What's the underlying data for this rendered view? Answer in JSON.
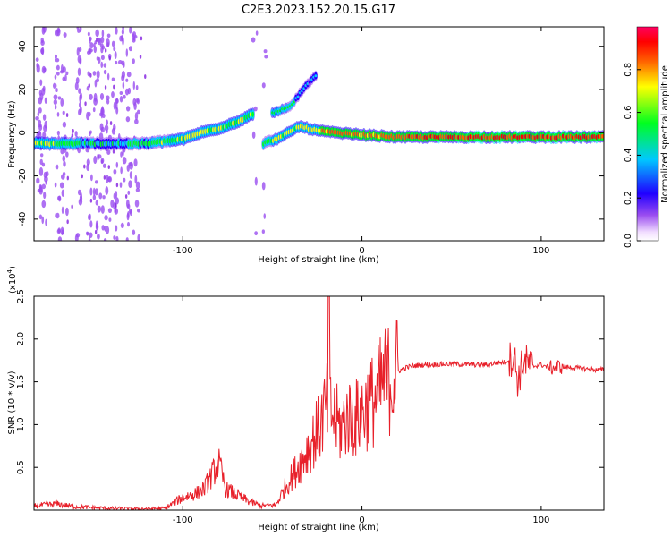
{
  "title": "C2E3.2023.152.20.15.G17",
  "chart_data": [
    {
      "type": "heatmap",
      "xlabel": "Height of straight line (km)",
      "ylabel": "Frequency (Hz)",
      "xlim": [
        -183,
        135
      ],
      "ylim": [
        -50,
        49
      ],
      "x_ticks": [
        -100,
        0,
        100
      ],
      "x_tick_labels": [
        "-100",
        "0",
        "100"
      ],
      "y_ticks": [
        -40,
        -20,
        0,
        20,
        40
      ],
      "y_tick_labels": [
        "-40",
        "-20",
        "0",
        "20",
        "40"
      ],
      "colorbar": {
        "label": "Normalized spectral amplitude",
        "range": [
          0,
          1
        ],
        "ticks": [
          0.0,
          0.2,
          0.4,
          0.6,
          0.8
        ],
        "tick_labels": [
          "0.0",
          "0.2",
          "0.4",
          "0.6",
          "0.8"
        ],
        "colors": [
          "#f4e4ff",
          "#9a4df0",
          "#2000ff",
          "#00d0ff",
          "#00ff20",
          "#ffff00",
          "#ff6000",
          "#ff0000",
          "#ff0060"
        ]
      },
      "main_track": [
        {
          "x": -183,
          "freq": -5,
          "amp": 0.6
        },
        {
          "x": -160,
          "freq": -5,
          "amp": 0.45
        },
        {
          "x": -140,
          "freq": -5,
          "amp": 0.35
        },
        {
          "x": -120,
          "freq": -5,
          "amp": 0.45
        },
        {
          "x": -100,
          "freq": -3,
          "amp": 0.55
        },
        {
          "x": -90,
          "freq": 0,
          "amp": 0.6
        },
        {
          "x": -80,
          "freq": 2,
          "amp": 0.55
        },
        {
          "x": -70,
          "freq": 5,
          "amp": 0.55
        },
        {
          "x": -60,
          "freq": 9,
          "amp": 0.55
        }
      ],
      "secondary_track": [
        {
          "x": -55,
          "freq": -5,
          "amp": 0.45
        },
        {
          "x": -45,
          "freq": -2,
          "amp": 0.55
        },
        {
          "x": -35,
          "freq": 3,
          "amp": 0.6
        },
        {
          "x": -25,
          "freq": 1,
          "amp": 0.7
        },
        {
          "x": -15,
          "freq": 0,
          "amp": 0.8
        },
        {
          "x": 0,
          "freq": -1,
          "amp": 0.75
        },
        {
          "x": 20,
          "freq": -2,
          "amp": 0.8
        },
        {
          "x": 60,
          "freq": -2,
          "amp": 0.85
        },
        {
          "x": 100,
          "freq": -2,
          "amp": 0.85
        },
        {
          "x": 135,
          "freq": -2,
          "amp": 0.85
        }
      ],
      "branch_track": [
        {
          "x": -50,
          "freq": 9,
          "amp": 0.55
        },
        {
          "x": -40,
          "freq": 12,
          "amp": 0.45
        },
        {
          "x": -33,
          "freq": 20,
          "amp": 0.3
        },
        {
          "x": -25,
          "freq": 27,
          "amp": 0.2
        }
      ]
    },
    {
      "type": "line",
      "xlabel": "Height of straight line (km)",
      "ylabel": "SNR (10 * v/v)",
      "y_scale_label": "(x10",
      "y_scale_exponent": "4",
      "y_scale_suffix": ")",
      "xlim": [
        -183,
        135
      ],
      "ylim": [
        0,
        25000
      ],
      "x_ticks": [
        -100,
        0,
        100
      ],
      "x_tick_labels": [
        "-100",
        "0",
        "100"
      ],
      "y_ticks": [
        5000,
        10000,
        15000,
        20000,
        25000
      ],
      "y_tick_labels": [
        "0.5",
        "1.0",
        "1.5",
        "2.0",
        "2.5"
      ],
      "color": "#e8202a",
      "series": [
        {
          "x": [
            -183,
            -170,
            -160,
            -150,
            -140,
            -125,
            -110,
            -100,
            -92,
            -88,
            -84,
            -80,
            -76,
            -70,
            -62,
            -56,
            -48,
            -42,
            -36,
            -32,
            -28,
            -24,
            -20,
            -16,
            -12,
            -8,
            -4,
            0,
            4,
            8,
            12,
            16,
            20,
            25,
            30,
            35,
            40,
            50,
            60,
            70,
            75,
            80,
            85,
            87,
            90,
            95,
            100,
            105,
            110,
            115,
            120,
            125,
            130,
            135
          ],
          "y": [
            500,
            700,
            400,
            300,
            200,
            150,
            200,
            1500,
            2000,
            2500,
            4000,
            5500,
            2500,
            1800,
            900,
            500,
            600,
            3000,
            5000,
            6500,
            8000,
            9500,
            12000,
            11000,
            9500,
            11000,
            10500,
            11500,
            12500,
            13000,
            15000,
            15500,
            16200,
            16700,
            16900,
            17000,
            17000,
            17100,
            17000,
            17000,
            17200,
            17300,
            18000,
            15000,
            17500,
            16800,
            17000,
            16600,
            16800,
            16700,
            16600,
            16500,
            16400,
            16400
          ]
        }
      ]
    }
  ]
}
